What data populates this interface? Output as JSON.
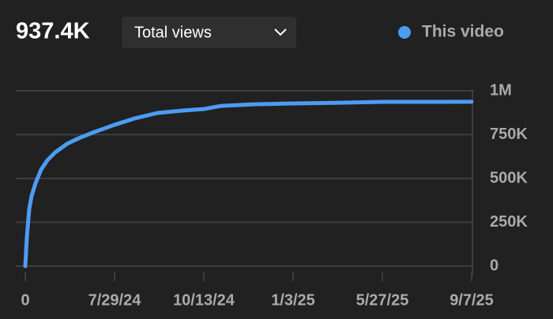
{
  "header": {
    "total": "937.4K",
    "metric": "Total views"
  },
  "chart_data": {
    "type": "line",
    "x": [
      0,
      0.018,
      0.044,
      0.071,
      0.115,
      0.177,
      0.248,
      0.336,
      0.469,
      0.602,
      0.779,
      1.0,
      1.221,
      1.487,
      1.752,
      2.0,
      2.195,
      2.549,
      3.0,
      3.522,
      4.0,
      4.504,
      5.0
    ],
    "series": [
      {
        "name": "This video",
        "color": "#4c9cf3",
        "values": [
          0,
          167000,
          324000,
          401000,
          473000,
          550000,
          604000,
          649000,
          698000,
          730000,
          766000,
          806000,
          842000,
          874000,
          887000,
          896000,
          914000,
          923000,
          928000,
          932000,
          937000,
          937000,
          937400
        ]
      }
    ],
    "xlim": [
      0,
      5
    ],
    "xticks": [
      0,
      {
        "value": 1,
        "label": "7/29/24"
      },
      {
        "value": 2,
        "label": "10/13/24"
      },
      {
        "value": 3,
        "label": "1/3/25"
      },
      {
        "value": 4,
        "label": "5/27/25"
      },
      {
        "value": 5,
        "label": "9/7/25"
      }
    ],
    "ylim": [
      0,
      1000000
    ],
    "yticks": [
      0,
      {
        "value": 250000,
        "label": "250K"
      },
      {
        "value": 500000,
        "label": "500K"
      },
      {
        "value": 750000,
        "label": "750K"
      },
      {
        "value": 1000000,
        "label": "1M"
      }
    ],
    "grid": true
  }
}
